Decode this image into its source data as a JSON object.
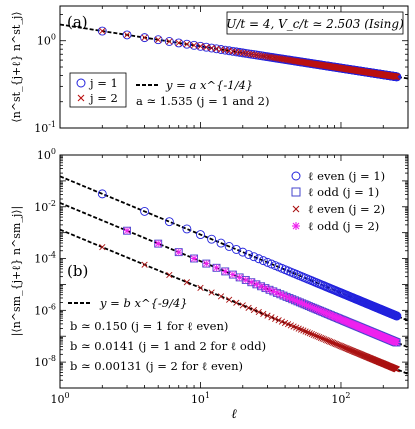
{
  "chart_data": [
    {
      "type": "scatter",
      "panel_label": "(a)",
      "annotation": "U/t = 4, V_c/t ≃ 2.503 (Ising)",
      "xscale": "log",
      "yscale": "log",
      "xlim": [
        1,
        300
      ],
      "ylim": [
        0.1,
        2.5
      ],
      "xlabel": "",
      "ylabel": "⟨n^st_{j+ℓ} n^st_j⟩",
      "x_ticks": [
        1,
        10,
        100
      ],
      "x_tick_labels": [
        "",
        "",
        ""
      ],
      "y_ticks": [
        0.1,
        1
      ],
      "y_tick_labels": [
        "10^-1",
        "10^0"
      ],
      "legend_position": "bottom-left",
      "fit": {
        "label": "y = a x^{-1/4}",
        "a": 1.535,
        "exponent": -0.25,
        "note": "a ≃ 1.535 (j = 1 and 2)"
      },
      "series": [
        {
          "name": "j = 1",
          "marker": "circle",
          "color": "#2222dd",
          "x_range": [
            2,
            250
          ],
          "amplitude": 1.535,
          "exponent": -0.25
        },
        {
          "name": "j = 2",
          "marker": "x",
          "color": "#bb1111",
          "x_range": [
            2,
            250
          ],
          "amplitude": 1.535,
          "exponent": -0.25
        }
      ]
    },
    {
      "type": "scatter",
      "panel_label": "(b)",
      "xscale": "log",
      "yscale": "log",
      "xlim": [
        1,
        300
      ],
      "ylim": [
        1e-09,
        1
      ],
      "xlabel": "ℓ",
      "ylabel": "|⟨n^sm_{j+ℓ} n^sm_j⟩|",
      "x_ticks": [
        1,
        10,
        100
      ],
      "x_tick_labels": [
        "10^0",
        "10^1",
        "10^2"
      ],
      "y_ticks": [
        1e-08,
        1e-06,
        0.0001,
        0.01,
        1
      ],
      "y_tick_labels": [
        "10^-8",
        "10^-6",
        "10^-4",
        "10^-2",
        "10^0"
      ],
      "legend_position": "top-right",
      "fit": {
        "label": "y = b x^{-9/4}",
        "exponent": -2.25,
        "notes": [
          "b ≃ 0.150 (j = 1 for ℓ even)",
          "b ≃ 0.0141 (j = 1 and 2 for ℓ odd)",
          "b ≃ 0.00131 (j = 2 for ℓ even)"
        ],
        "b_values": [
          0.15,
          0.0141,
          0.00131
        ]
      },
      "series": [
        {
          "name": "ℓ even (j = 1)",
          "marker": "circle",
          "color": "#2222dd",
          "parity": "even",
          "x_range": [
            2,
            250
          ],
          "amplitude": 0.15,
          "exponent": -2.25
        },
        {
          "name": "ℓ odd (j = 1)",
          "marker": "square",
          "color": "#4444cc",
          "parity": "odd",
          "x_range": [
            3,
            250
          ],
          "amplitude": 0.0141,
          "exponent": -2.25
        },
        {
          "name": "ℓ even (j = 2)",
          "marker": "x",
          "color": "#aa1111",
          "parity": "even",
          "x_range": [
            2,
            250
          ],
          "amplitude": 0.00131,
          "exponent": -2.25
        },
        {
          "name": "ℓ odd (j = 2)",
          "marker": "star",
          "color": "#ee22ee",
          "parity": "odd",
          "x_range": [
            3,
            250
          ],
          "amplitude": 0.0141,
          "exponent": -2.25
        }
      ]
    }
  ]
}
